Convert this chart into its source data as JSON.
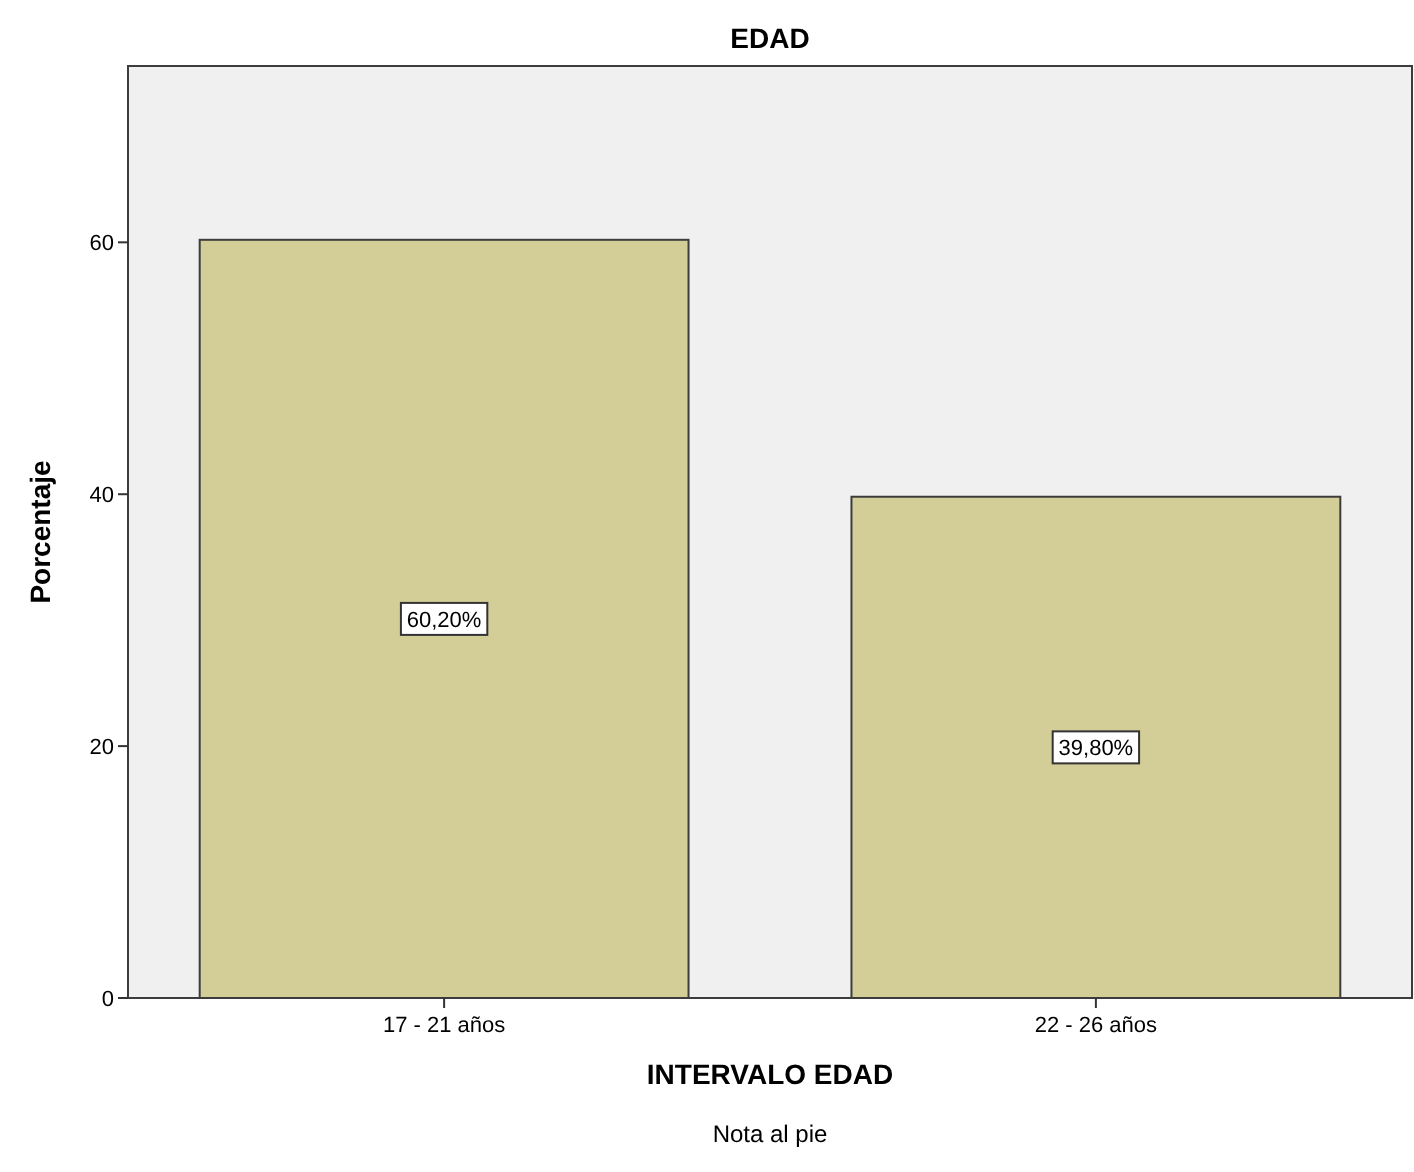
{
  "chart_data": {
    "type": "bar",
    "title": "EDAD",
    "xlabel": "INTERVALO EDAD",
    "ylabel": "Porcentaje",
    "categories": [
      "17 - 21 años",
      "22 - 26 años"
    ],
    "values": [
      60.2,
      39.8
    ],
    "value_labels": [
      "60,20%",
      "39,80%"
    ],
    "color": "#d3ce98",
    "ylim": [
      0,
      74
    ],
    "yticks": [
      0,
      20,
      40,
      60
    ],
    "grid": false,
    "annotations": [
      "Nota al pie"
    ]
  }
}
